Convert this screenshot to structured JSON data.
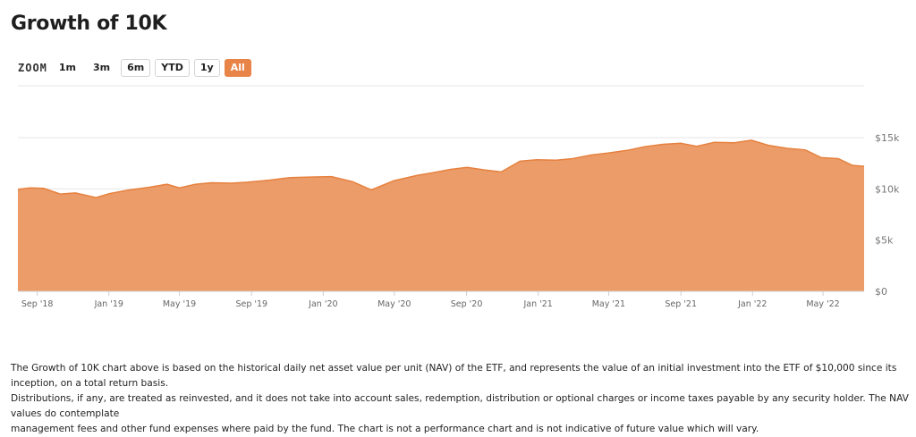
{
  "page": {
    "title": "Growth of 10K"
  },
  "zoom": {
    "label": "ZOOM",
    "buttons": [
      {
        "label": "1m",
        "active": false,
        "boxed": false
      },
      {
        "label": "3m",
        "active": false,
        "boxed": false
      },
      {
        "label": "6m",
        "active": false,
        "boxed": true
      },
      {
        "label": "YTD",
        "active": false,
        "boxed": true
      },
      {
        "label": "1y",
        "active": false,
        "boxed": true
      },
      {
        "label": "All",
        "active": true,
        "boxed": false
      }
    ]
  },
  "colors": {
    "area_fill": "#ec9c68",
    "area_line": "#e6813f",
    "accent": "#e98448",
    "grid": "#e6e6e6"
  },
  "chart_data": {
    "type": "area",
    "title": "",
    "xlabel": "",
    "ylabel": "",
    "ylim": [
      0,
      15000
    ],
    "xlim": [
      "2018-07-30",
      "2022-07-10"
    ],
    "y_ticks": [
      {
        "value": 0,
        "label": "$0"
      },
      {
        "value": 5000,
        "label": "$5k"
      },
      {
        "value": 10000,
        "label": "$10k"
      },
      {
        "value": 15000,
        "label": "$15k"
      }
    ],
    "x_ticks": [
      {
        "date": "2018-09-01",
        "label": "Sep '18"
      },
      {
        "date": "2019-01-01",
        "label": "Jan '19"
      },
      {
        "date": "2019-05-01",
        "label": "May '19"
      },
      {
        "date": "2019-09-01",
        "label": "Sep '19"
      },
      {
        "date": "2020-01-01",
        "label": "Jan '20"
      },
      {
        "date": "2020-05-01",
        "label": "May '20"
      },
      {
        "date": "2020-09-01",
        "label": "Sep '20"
      },
      {
        "date": "2021-01-01",
        "label": "Jan '21"
      },
      {
        "date": "2021-05-01",
        "label": "May '21"
      },
      {
        "date": "2021-09-01",
        "label": "Sep '21"
      },
      {
        "date": "2022-01-01",
        "label": "Jan '22"
      },
      {
        "date": "2022-05-01",
        "label": "May '22"
      }
    ],
    "series": [
      {
        "x": [
          "2018-07-30",
          "2018-08-20",
          "2018-09-12",
          "2018-10-10",
          "2018-11-05",
          "2018-12-10",
          "2019-01-03",
          "2019-02-05",
          "2019-03-10",
          "2019-04-10",
          "2019-05-01",
          "2019-05-28",
          "2019-06-25",
          "2019-07-28",
          "2019-08-25",
          "2019-10-01",
          "2019-11-05",
          "2019-12-10",
          "2020-01-15",
          "2020-02-20",
          "2020-03-23",
          "2020-04-30",
          "2020-06-08",
          "2020-07-08",
          "2020-08-05",
          "2020-09-02",
          "2020-10-01",
          "2020-10-30",
          "2020-12-01",
          "2020-12-30",
          "2021-02-01",
          "2021-03-01",
          "2021-04-01",
          "2021-04-30",
          "2021-06-01",
          "2021-07-01",
          "2021-08-01",
          "2021-09-01",
          "2021-09-28",
          "2021-10-28",
          "2021-12-01",
          "2021-12-30",
          "2022-01-28",
          "2022-03-01",
          "2022-04-01",
          "2022-04-28",
          "2022-05-27",
          "2022-06-20",
          "2022-07-10"
        ],
        "values": [
          9950,
          10100,
          10050,
          9500,
          9600,
          9150,
          9550,
          9900,
          10150,
          10450,
          10100,
          10450,
          10600,
          10550,
          10650,
          10850,
          11100,
          11150,
          11200,
          10700,
          9900,
          10800,
          11300,
          11600,
          11900,
          12100,
          11850,
          11650,
          12700,
          12850,
          12800,
          12950,
          13300,
          13500,
          13750,
          14100,
          14350,
          14450,
          14150,
          14550,
          14500,
          14750,
          14250,
          13950,
          13800,
          13050,
          12950,
          12300,
          12200
        ]
      }
    ]
  },
  "footnote": {
    "lines": [
      "The Growth of 10K chart above is based on the historical daily net asset value per unit (NAV) of the ETF, and represents the value of an initial investment into the ETF of $10,000 since its inception, on a total return basis.",
      "Distributions, if any, are treated as reinvested, and it does not take into account sales, redemption, distribution or optional charges or income taxes payable by any security holder. The NAV values do contemplate",
      "management fees and other fund expenses where paid by the fund. The chart is not a performance chart and is not indicative of future value which will vary."
    ]
  }
}
